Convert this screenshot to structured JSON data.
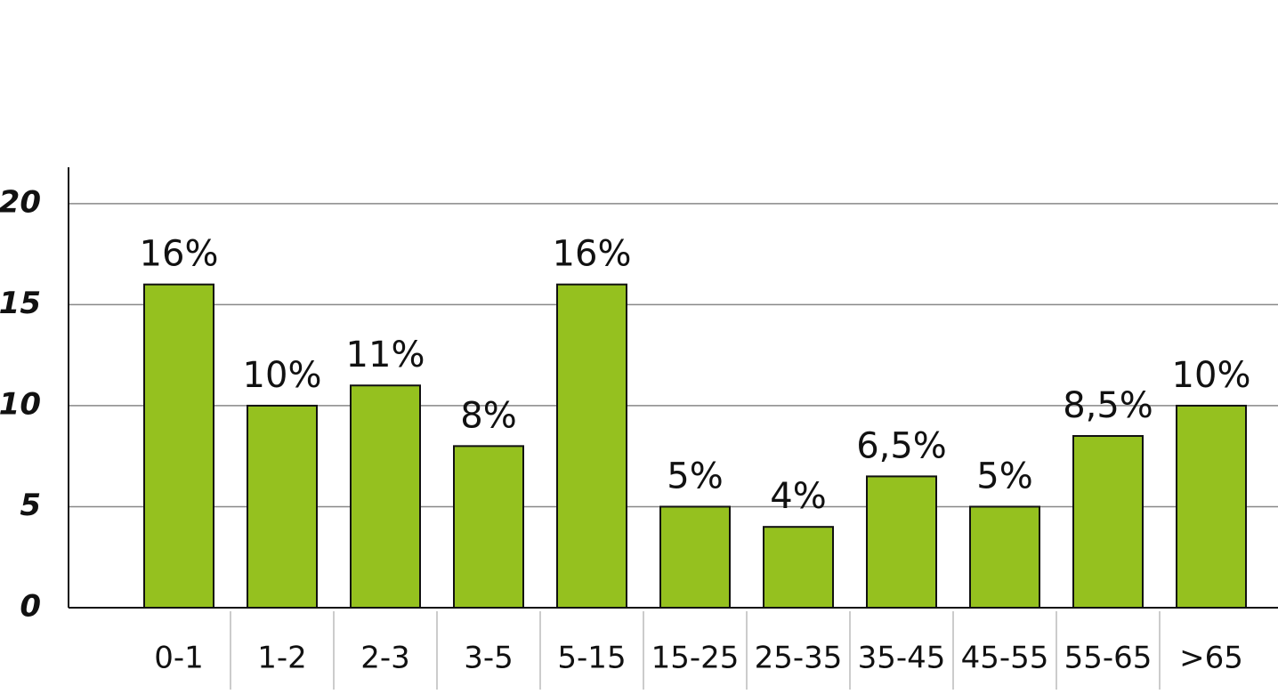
{
  "chart_data": {
    "type": "bar",
    "categories": [
      "0-1",
      "1-2",
      "2-3",
      "3-5",
      "5-15",
      "15-25",
      "25-35",
      "35-45",
      "45-55",
      "55-65",
      ">65"
    ],
    "values": [
      16,
      10,
      11,
      8,
      16,
      5,
      4,
      6.5,
      5,
      8.5,
      10
    ],
    "value_labels": [
      "16%",
      "10%",
      "11%",
      "8%",
      "16%",
      "5%",
      "4%",
      "6,5%",
      "5%",
      "8,5%",
      "10%"
    ],
    "color": "#95c11f",
    "ylim": [
      0,
      21.8
    ],
    "yticks": [
      0,
      5,
      10,
      15,
      20
    ],
    "grid": true
  }
}
